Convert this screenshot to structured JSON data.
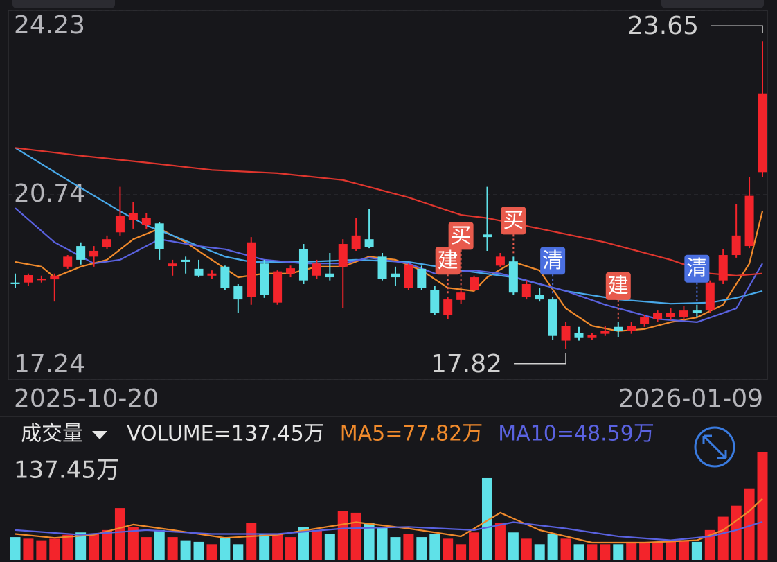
{
  "chart_data": [
    {
      "type": "candlestick",
      "categories": [
        "2025-10-20",
        null,
        null,
        null,
        null,
        null,
        null,
        null,
        null,
        null,
        null,
        null,
        null,
        null,
        null,
        null,
        null,
        null,
        null,
        null,
        null,
        null,
        null,
        null,
        null,
        null,
        null,
        null,
        null,
        null,
        null,
        null,
        null,
        null,
        null,
        null,
        null,
        null,
        null,
        null,
        null,
        null,
        null,
        null,
        null,
        null,
        null,
        null,
        null,
        null,
        null,
        null,
        null,
        null,
        null,
        null,
        null,
        "2026-01-09"
      ],
      "open": [
        19.08,
        19.08,
        19.14,
        19.14,
        19.38,
        19.77,
        19.57,
        19.75,
        20.03,
        20.26,
        20.17,
        20.2,
        19.39,
        19.51,
        19.34,
        19.21,
        19.38,
        19.01,
        18.81,
        19.44,
        18.7,
        19.25,
        19.71,
        19.21,
        19.25,
        19.38,
        19.71,
        19.9,
        19.57,
        19.25,
        18.98,
        19.34,
        18.94,
        18.46,
        18.75,
        18.94,
        19.99,
        19.4,
        19.48,
        18.81,
        18.85,
        18.76,
        17.98,
        18.13,
        18.03,
        18.11,
        18.24,
        18.16,
        18.29,
        18.39,
        18.42,
        18.42,
        18.55,
        18.55,
        19.12,
        19.6,
        19.77,
        21.17
      ],
      "high": [
        19.25,
        19.25,
        19.21,
        19.25,
        19.6,
        19.84,
        19.77,
        19.97,
        20.89,
        20.6,
        20.39,
        20.23,
        19.51,
        19.57,
        19.51,
        19.31,
        19.4,
        19.05,
        19.94,
        19.51,
        19.31,
        19.4,
        19.81,
        19.51,
        19.64,
        19.9,
        20.3,
        20.47,
        19.64,
        19.38,
        19.44,
        19.4,
        19.02,
        18.81,
        18.94,
        19.21,
        20.89,
        19.64,
        19.57,
        19.12,
        18.98,
        18.81,
        18.33,
        18.24,
        18.13,
        18.26,
        18.33,
        18.33,
        18.46,
        18.55,
        18.59,
        18.63,
        18.66,
        19.12,
        19.71,
        20.56,
        21.08,
        23.65
      ],
      "low": [
        18.98,
        19.02,
        19.08,
        18.72,
        19.34,
        19.42,
        19.38,
        19.71,
        19.97,
        20.1,
        20.1,
        19.51,
        19.21,
        19.25,
        19.18,
        19.15,
        18.94,
        18.5,
        18.66,
        18.79,
        18.66,
        19.18,
        19.05,
        19.15,
        19.12,
        18.59,
        19.68,
        19.73,
        19.12,
        19.02,
        18.94,
        18.94,
        18.46,
        18.39,
        18.68,
        18.92,
        19.68,
        19.37,
        18.85,
        18.76,
        18.72,
        18.0,
        17.82,
        17.98,
        18.0,
        18.07,
        18.04,
        18.11,
        18.24,
        18.33,
        18.37,
        18.37,
        18.42,
        18.5,
        19.05,
        19.55,
        19.73,
        21.08
      ],
      "close": [
        19.05,
        19.22,
        19.15,
        19.21,
        19.57,
        19.51,
        19.68,
        19.9,
        20.34,
        20.39,
        20.3,
        19.71,
        19.44,
        19.47,
        19.21,
        19.25,
        18.98,
        18.76,
        19.84,
        18.85,
        19.29,
        19.35,
        19.12,
        19.44,
        19.18,
        19.81,
        19.97,
        19.75,
        19.15,
        19.18,
        19.42,
        18.98,
        18.5,
        18.76,
        18.89,
        19.18,
        19.94,
        19.57,
        18.89,
        19.05,
        18.76,
        18.07,
        18.26,
        18.03,
        18.08,
        18.17,
        18.16,
        18.26,
        18.42,
        18.5,
        18.5,
        18.55,
        18.5,
        19.08,
        19.6,
        19.97,
        20.72,
        22.66
      ],
      "up_color": "#f3242b",
      "down_color": "#5fe1e8",
      "ylim": [
        17.24,
        24.23
      ],
      "yticks": [
        17.24,
        20.74,
        24.23
      ],
      "grid": true,
      "lines": [
        {
          "color": "#f08a2c",
          "x": [
            0,
            2,
            3,
            5,
            7,
            9,
            11,
            13,
            15,
            17,
            19,
            21,
            23,
            25,
            27,
            29,
            31,
            33,
            35,
            36,
            38,
            40,
            42,
            44,
            46,
            48,
            50,
            52,
            54,
            56,
            57
          ],
          "values": [
            19.47,
            19.38,
            19.18,
            19.38,
            19.51,
            19.9,
            20.1,
            19.84,
            19.51,
            19.18,
            19.25,
            19.25,
            19.38,
            19.38,
            19.57,
            19.51,
            19.31,
            18.98,
            18.92,
            19.18,
            19.47,
            19.31,
            18.59,
            18.26,
            18.16,
            18.2,
            18.33,
            18.42,
            18.66,
            19.44,
            20.43
          ]
        },
        {
          "color": "#48a8e8",
          "x": [
            0,
            4,
            8,
            10,
            12,
            14,
            16,
            18,
            22,
            26,
            30,
            34,
            38,
            40,
            42,
            46,
            50,
            53,
            55,
            57
          ],
          "values": [
            21.63,
            21.02,
            20.43,
            20.16,
            19.97,
            19.77,
            19.57,
            19.47,
            19.47,
            19.51,
            19.47,
            19.31,
            19.18,
            19.05,
            18.92,
            18.76,
            18.68,
            18.7,
            18.79,
            18.92
          ]
        },
        {
          "color": "#5a62e0",
          "x": [
            0,
            3,
            6,
            8,
            11,
            14,
            16,
            19,
            22,
            25,
            27,
            30,
            32,
            35,
            37,
            39,
            42,
            45,
            49,
            52,
            55,
            57
          ],
          "values": [
            20.49,
            19.84,
            19.44,
            19.51,
            19.9,
            19.77,
            19.71,
            19.51,
            19.44,
            19.44,
            19.55,
            19.44,
            19.25,
            19.31,
            19.25,
            19.12,
            18.92,
            18.66,
            18.39,
            18.33,
            18.59,
            19.44
          ]
        },
        {
          "color": "#e0362e",
          "x": [
            0,
            5,
            10,
            15,
            20,
            25,
            30,
            34,
            36,
            40,
            45,
            50,
            53,
            55,
            57
          ],
          "values": [
            21.63,
            21.48,
            21.35,
            21.21,
            21.15,
            21.02,
            20.69,
            20.36,
            20.3,
            20.1,
            19.84,
            19.51,
            19.25,
            19.21,
            19.25
          ]
        }
      ],
      "signals": [
        {
          "text": "建",
          "x": 33,
          "color": "#e85a4c"
        },
        {
          "text": "买",
          "x": 34,
          "color": "#e85a4c"
        },
        {
          "text": "买",
          "x": 38,
          "color": "#e85a4c"
        },
        {
          "text": "清",
          "x": 41,
          "color": "#4a6fe0"
        },
        {
          "text": "建",
          "x": 46,
          "color": "#e85a4c"
        },
        {
          "text": "清",
          "x": 52,
          "color": "#4a6fe0"
        }
      ]
    },
    {
      "type": "bar",
      "title": "成交量",
      "legend": [
        {
          "text": "VOLUME=137.45万",
          "color": "#e6e6e6"
        },
        {
          "text": "MA5=77.82万",
          "color": "#f08a2c"
        },
        {
          "text": "MA10=48.59万",
          "color": "#5a62e0"
        }
      ],
      "values": [
        29,
        27,
        25,
        27,
        32,
        35,
        33,
        38,
        66,
        42,
        29,
        38,
        29,
        25,
        23,
        20,
        29,
        20,
        47,
        33,
        33,
        29,
        42,
        38,
        33,
        62,
        60,
        47,
        42,
        29,
        33,
        29,
        33,
        27,
        20,
        35,
        104,
        47,
        35,
        27,
        20,
        33,
        27,
        20,
        20,
        20,
        20,
        23,
        23,
        23,
        23,
        25,
        23,
        38,
        55,
        69,
        91,
        137.45
      ],
      "ylim": [
        0,
        137.45
      ],
      "yticks": [
        {
          "value": 137.45,
          "label": "137.45万"
        }
      ],
      "lines": [
        {
          "color": "#f08a2c",
          "x": [
            0,
            3,
            6,
            9,
            12,
            16,
            20,
            26,
            30,
            34,
            37,
            40,
            44,
            48,
            52,
            54,
            56,
            57
          ],
          "values": [
            33,
            28,
            32,
            45,
            38,
            28,
            32,
            48,
            40,
            30,
            60,
            38,
            22,
            22,
            25,
            38,
            62,
            77.82
          ]
        },
        {
          "color": "#5a62e0",
          "x": [
            0,
            5,
            10,
            15,
            20,
            25,
            30,
            35,
            38,
            42,
            46,
            50,
            53,
            55,
            57
          ],
          "values": [
            38,
            32,
            38,
            33,
            33,
            40,
            42,
            38,
            48,
            40,
            30,
            25,
            30,
            38,
            48.59
          ]
        }
      ]
    }
  ]
}
